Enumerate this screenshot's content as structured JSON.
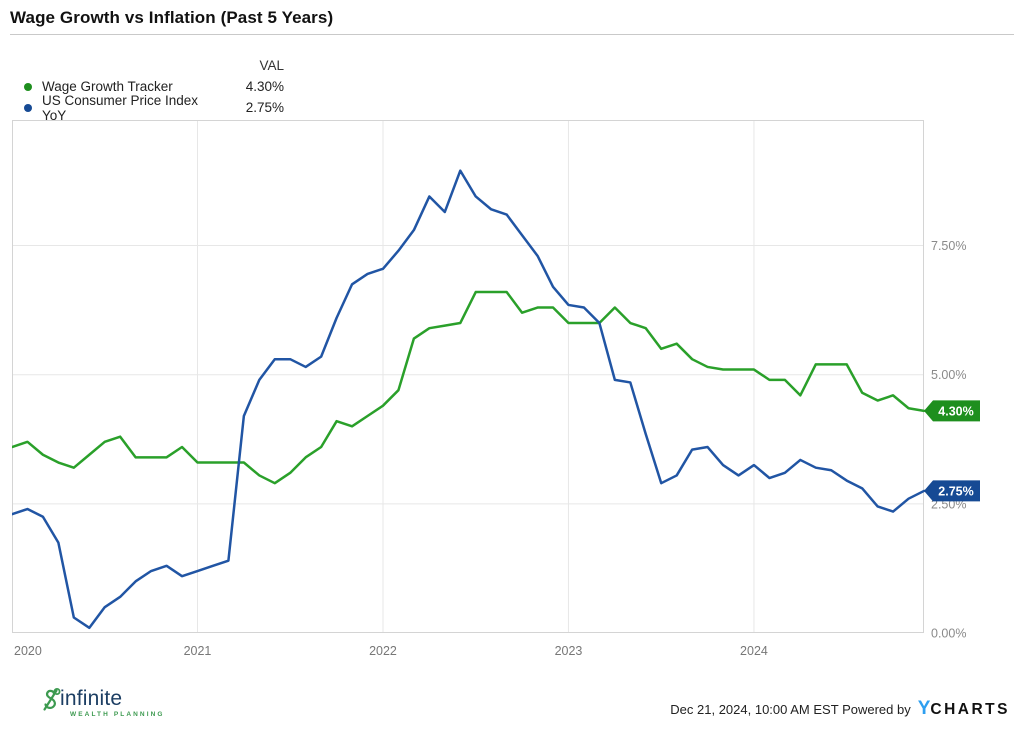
{
  "title": "Wage Growth vs Inflation (Past 5 Years)",
  "legend": {
    "val_header": "VAL",
    "rows": [
      {
        "label": "Wage Growth Tracker",
        "value": "4.30%"
      },
      {
        "label": "US Consumer Price Index YoY",
        "value": "2.75%"
      }
    ]
  },
  "footer": {
    "logo_name": "infinite",
    "logo_sub": "WEALTH PLANNING",
    "timestamp": "Dec 21, 2024, 10:00 AM EST",
    "powered_by": "Powered by",
    "ycharts_y": "Y",
    "ycharts_rest": "CHARTS"
  },
  "colors": {
    "wage_line": "#2aa02a",
    "wage_badge": "#1e8f1e",
    "cpi_line": "#2155a4",
    "cpi_badge": "#164a94",
    "grid": "#e7e7e7",
    "plot_border": "#d4d4d4",
    "axis_label": "#8a8a8a",
    "x_label": "#777777",
    "ycharts_blue": "#2e9ff0",
    "logo_green": "#3d9a50",
    "logo_navy": "#1c3e63"
  },
  "chart_data": {
    "type": "line",
    "title": "Wage Growth vs Inflation (Past 5 Years)",
    "x_description": "Monthly, Jan 2020 - Dec 2024",
    "ylim": [
      0,
      9.93
    ],
    "grid": true,
    "legend_position": "top-left",
    "x_ticks": [
      {
        "label": "2020",
        "month_index": 0
      },
      {
        "label": "2021",
        "month_index": 12
      },
      {
        "label": "2022",
        "month_index": 24
      },
      {
        "label": "2023",
        "month_index": 36
      },
      {
        "label": "2024",
        "month_index": 48
      }
    ],
    "y_ticks": [
      {
        "value": 7.5,
        "label": "7.50%"
      },
      {
        "value": 5.0,
        "label": "5.00%"
      },
      {
        "value": 2.5,
        "label": "2.50%"
      },
      {
        "value": 0.0,
        "label": "0.00%"
      }
    ],
    "series": [
      {
        "name": "Wage Growth Tracker",
        "color": "#2aa02a",
        "badge_label": "4.30%",
        "badge_color": "#1e8f1e",
        "values": [
          3.6,
          3.7,
          3.45,
          3.3,
          3.2,
          3.45,
          3.7,
          3.8,
          3.4,
          3.4,
          3.4,
          3.6,
          3.3,
          3.3,
          3.3,
          3.3,
          3.05,
          2.9,
          3.1,
          3.4,
          3.6,
          4.1,
          4.0,
          4.2,
          4.4,
          4.7,
          5.7,
          5.9,
          5.95,
          6.0,
          6.6,
          6.6,
          6.6,
          6.2,
          6.3,
          6.3,
          6.0,
          6.0,
          6.0,
          6.3,
          6.0,
          5.9,
          5.5,
          5.6,
          5.3,
          5.15,
          5.1,
          5.1,
          5.1,
          4.9,
          4.9,
          4.6,
          5.2,
          5.2,
          5.2,
          4.65,
          4.5,
          4.6,
          4.35,
          4.3
        ]
      },
      {
        "name": "US Consumer Price Index YoY",
        "color": "#2155a4",
        "badge_label": "2.75%",
        "badge_color": "#164a94",
        "values": [
          2.3,
          2.4,
          2.25,
          1.75,
          0.3,
          0.1,
          0.5,
          0.7,
          1.0,
          1.2,
          1.3,
          1.1,
          1.2,
          1.3,
          1.4,
          4.2,
          4.9,
          5.3,
          5.3,
          5.15,
          5.35,
          6.1,
          6.75,
          6.95,
          7.05,
          7.4,
          7.8,
          8.45,
          8.15,
          8.95,
          8.45,
          8.2,
          8.1,
          7.7,
          7.3,
          6.7,
          6.35,
          6.3,
          6.0,
          4.9,
          4.85,
          3.85,
          2.9,
          3.05,
          3.55,
          3.6,
          3.25,
          3.05,
          3.25,
          3.0,
          3.1,
          3.35,
          3.2,
          3.15,
          2.95,
          2.8,
          2.45,
          2.35,
          2.6,
          2.75
        ]
      }
    ]
  }
}
